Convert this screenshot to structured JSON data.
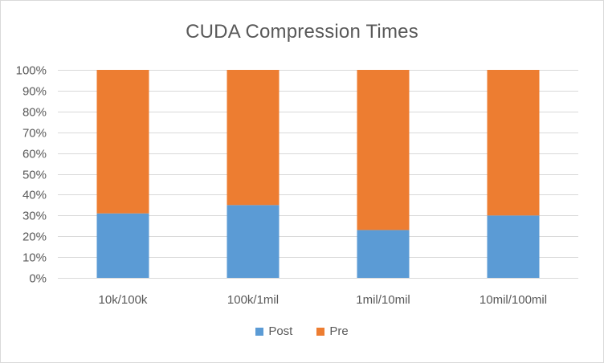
{
  "chart_data": {
    "type": "bar",
    "stacked": true,
    "stack_mode": "percent",
    "title": "CUDA Compression  Times",
    "xlabel": "",
    "ylabel": "",
    "categories": [
      "10k/100k",
      "100k/1mil",
      "1mil/10mil",
      "10mil/100mil"
    ],
    "series": [
      {
        "name": "Post",
        "color": "#5b9bd5",
        "values": [
          31,
          35,
          23,
          30
        ]
      },
      {
        "name": "Pre",
        "color": "#ed7d31",
        "values": [
          69,
          65,
          77,
          70
        ]
      }
    ],
    "ylim": [
      0,
      100
    ],
    "yticks": [
      "0%",
      "10%",
      "20%",
      "30%",
      "40%",
      "50%",
      "60%",
      "70%",
      "80%",
      "90%",
      "100%"
    ],
    "grid": true,
    "legend_position": "bottom"
  }
}
